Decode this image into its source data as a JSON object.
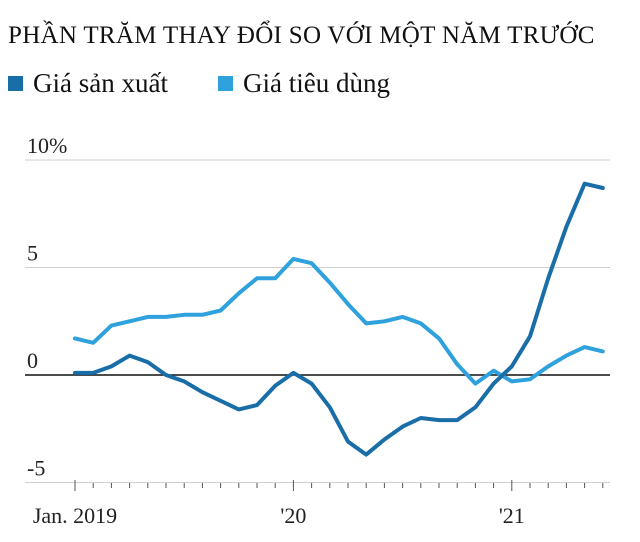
{
  "title": "PHẦN TRĂM THAY ĐỔI SO VỚI MỘT NĂM TRƯỚC",
  "legend": [
    {
      "label": "Giá sản xuất",
      "color": "#1a6ea8"
    },
    {
      "label": "Giá tiêu dùng",
      "color": "#2fa1dc"
    }
  ],
  "chart_data": {
    "type": "line",
    "title": "PHẦN TRĂM THAY ĐỔI SO VỚI MỘT NĂM TRƯỚC",
    "ylim": [
      -5,
      10
    ],
    "y_ticks": [
      10,
      5,
      0,
      -5
    ],
    "y_tick_labels": [
      "10%",
      "5",
      "0",
      "-5"
    ],
    "x_tick_labels": [
      {
        "label": "Jan. 2019",
        "month_index": 0
      },
      {
        "label": "'20",
        "month_index": 12
      },
      {
        "label": "'21",
        "month_index": 24
      }
    ],
    "x_count": 30,
    "grid": true,
    "legend_position": "top-left",
    "series": [
      {
        "name": "Giá sản xuất",
        "color": "#1a6ea8",
        "values": [
          0.1,
          0.1,
          0.4,
          0.9,
          0.6,
          0.0,
          -0.3,
          -0.8,
          -1.2,
          -1.6,
          -1.4,
          -0.5,
          0.1,
          -0.4,
          -1.5,
          -3.1,
          -3.7,
          -3.0,
          -2.4,
          -2.0,
          -2.1,
          -2.1,
          -1.5,
          -0.4,
          0.4,
          1.8,
          4.5,
          6.9,
          8.9,
          8.7
        ]
      },
      {
        "name": "Giá tiêu dùng",
        "color": "#2fa1dc",
        "values": [
          1.7,
          1.5,
          2.3,
          2.5,
          2.7,
          2.7,
          2.8,
          2.8,
          3.0,
          3.8,
          4.5,
          4.5,
          5.4,
          5.2,
          4.3,
          3.3,
          2.4,
          2.5,
          2.7,
          2.4,
          1.7,
          0.5,
          -0.4,
          0.2,
          -0.3,
          -0.2,
          0.4,
          0.9,
          1.3,
          1.1
        ]
      }
    ]
  }
}
